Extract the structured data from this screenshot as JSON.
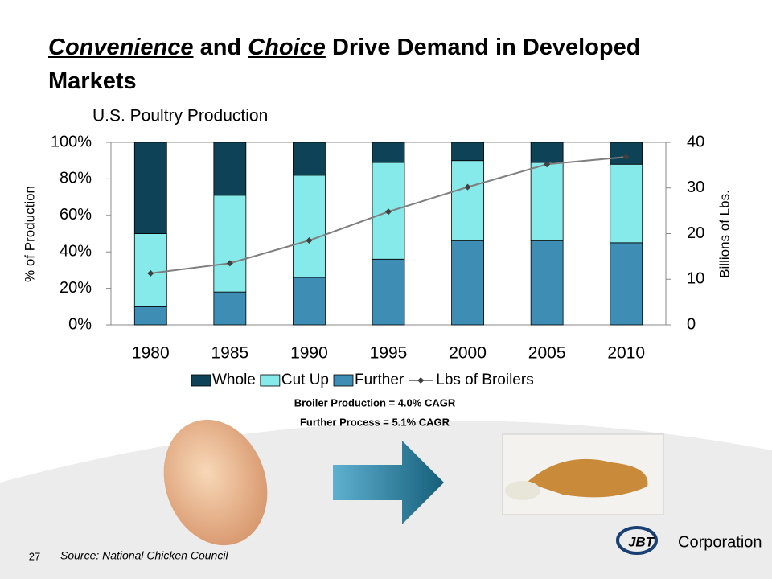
{
  "slide": {
    "title": {
      "emphasis_1": "Convenience",
      "text_1": "and",
      "emphasis_2": "Choice",
      "text_2": "Drive Demand in Developed Markets"
    },
    "notes": [
      "Broiler Production = 4.0% CAGR",
      "Further Process = 5.1% CAGR"
    ],
    "source": "Source: National Chicken Council",
    "page_number": 27,
    "logo": {
      "mark": "JBT",
      "text": "Corporation"
    }
  },
  "chart_data": {
    "type": "bar",
    "stacked": true,
    "title": "U.S. Poultry Production",
    "y_label": "% of Production",
    "y2_label": "Billions of Lbs.",
    "categories": [
      "1980",
      "1985",
      "1990",
      "1995",
      "2000",
      "2005",
      "2010"
    ],
    "series": [
      {
        "name": "Whole",
        "color": "#0e4257",
        "values": [
          50,
          29,
          18,
          11,
          10,
          11,
          12
        ]
      },
      {
        "name": "Cut Up",
        "color": "#86eaea",
        "values": [
          40,
          53,
          56,
          53,
          44,
          43,
          43
        ]
      },
      {
        "name": "Further",
        "color": "#3d8db5",
        "values": [
          10,
          18,
          26,
          36,
          46,
          46,
          45
        ]
      },
      {
        "name": "Lbs of Broilers",
        "type": "line",
        "axis": "y2",
        "color": "#7f7f7f",
        "marker_color": "#404040",
        "values": [
          11.3,
          13.5,
          18.5,
          24.8,
          30.2,
          35.2,
          36.8
        ]
      }
    ],
    "ylim": [
      0,
      100
    ],
    "yticks": [
      {
        "value": 0,
        "label": "0%"
      },
      {
        "value": 20,
        "label": "20%"
      },
      {
        "value": 40,
        "label": "40%"
      },
      {
        "value": 60,
        "label": "60%"
      },
      {
        "value": 80,
        "label": "80%"
      },
      {
        "value": 100,
        "label": "100%"
      }
    ],
    "y2lim": [
      0,
      40
    ],
    "y2ticks": [
      0,
      10,
      20,
      30,
      40
    ],
    "legend": "bottom"
  }
}
